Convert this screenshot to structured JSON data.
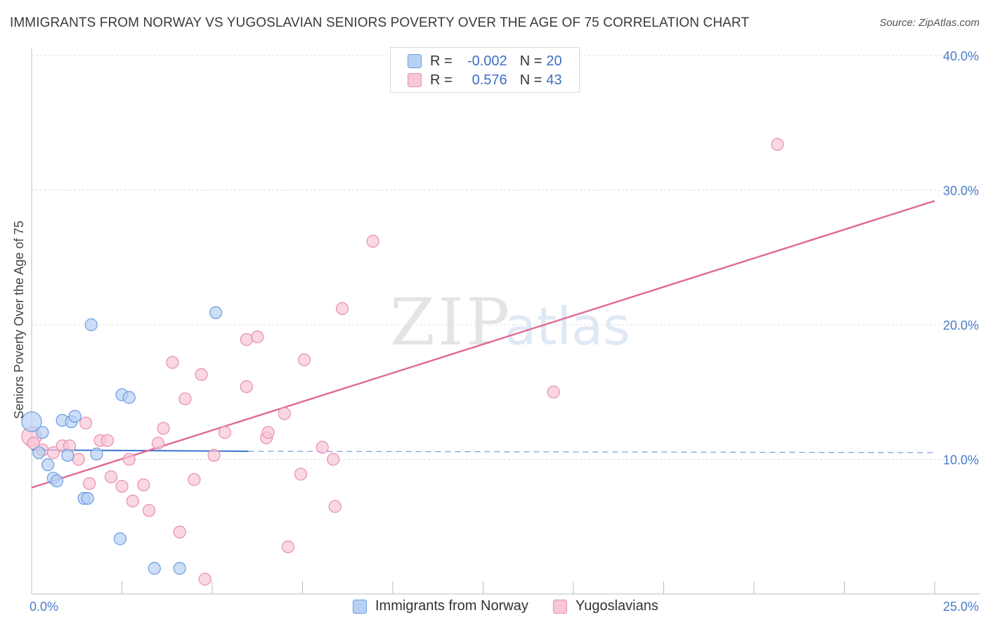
{
  "title": "IMMIGRANTS FROM NORWAY VS YUGOSLAVIAN SENIORS POVERTY OVER THE AGE OF 75 CORRELATION CHART",
  "source": "Source: ZipAtlas.com",
  "watermark": {
    "zip": "ZIP",
    "atlas": "atlas"
  },
  "colors": {
    "blue_fill": "#b8d0f3",
    "blue_stroke": "#6a9be0",
    "blue_line": "#3b73d1",
    "pink_fill": "#f8c6d4",
    "pink_stroke": "#e88fab",
    "pink_line": "#e06a94",
    "grid": "#dcdcdc",
    "tick_text": "#4a7cc9"
  },
  "legend": {
    "rows": [
      {
        "r_label": "R =",
        "r_value": "-0.002",
        "n_label": "N =",
        "n_value": "20"
      },
      {
        "r_label": "R =",
        "r_value": "0.576",
        "n_label": "N =",
        "n_value": "43"
      }
    ]
  },
  "chart_data": {
    "type": "scatter",
    "title": "IMMIGRANTS FROM NORWAY VS YUGOSLAVIAN SENIORS POVERTY OVER THE AGE OF 75 CORRELATION CHART",
    "xlabel": "",
    "ylabel": "Seniors Poverty Over the Age of 75",
    "xlim": [
      0,
      25
    ],
    "ylim": [
      0,
      40
    ],
    "x_tick_labels": [
      "0.0%",
      "25.0%"
    ],
    "y_ticks": [
      10,
      20,
      30,
      40
    ],
    "y_tick_labels": [
      "10.0%",
      "20.0%",
      "30.0%",
      "40.0%"
    ],
    "grid": true,
    "legend_position": "bottom",
    "series": [
      {
        "name": "Immigrants from Norway",
        "color": "blue",
        "trend": {
          "x0": 0,
          "y0": 10.7,
          "x1": 6.0,
          "y1": 10.6,
          "dashed_to": 25,
          "dashed_y": 10.5
        },
        "points": [
          [
            0.0,
            12.8
          ],
          [
            0.3,
            12.0
          ],
          [
            0.2,
            10.5
          ],
          [
            0.45,
            9.6
          ],
          [
            0.6,
            8.6
          ],
          [
            0.7,
            8.4
          ],
          [
            0.85,
            12.9
          ],
          [
            1.0,
            10.3
          ],
          [
            1.1,
            12.8
          ],
          [
            1.2,
            13.2
          ],
          [
            1.8,
            10.4
          ],
          [
            1.65,
            20.0
          ],
          [
            2.5,
            14.8
          ],
          [
            2.7,
            14.6
          ],
          [
            1.45,
            7.1
          ],
          [
            1.55,
            7.1
          ],
          [
            2.45,
            4.1
          ],
          [
            3.4,
            1.9
          ],
          [
            4.1,
            1.9
          ],
          [
            5.1,
            20.9
          ]
        ]
      },
      {
        "name": "Yugoslavians",
        "color": "pink",
        "trend": {
          "x0": 0,
          "y0": 7.9,
          "x1": 25,
          "y1": 29.2
        },
        "points": [
          [
            0.0,
            11.7
          ],
          [
            0.3,
            10.7
          ],
          [
            0.6,
            10.5
          ],
          [
            0.85,
            11.0
          ],
          [
            1.05,
            11.0
          ],
          [
            1.3,
            10.0
          ],
          [
            1.5,
            12.7
          ],
          [
            1.6,
            8.2
          ],
          [
            1.9,
            11.4
          ],
          [
            2.1,
            11.4
          ],
          [
            2.2,
            8.7
          ],
          [
            2.5,
            8.0
          ],
          [
            2.7,
            10.0
          ],
          [
            2.8,
            6.9
          ],
          [
            3.1,
            8.1
          ],
          [
            3.25,
            6.2
          ],
          [
            3.5,
            11.2
          ],
          [
            3.65,
            12.3
          ],
          [
            3.9,
            17.2
          ],
          [
            4.1,
            4.6
          ],
          [
            4.25,
            14.5
          ],
          [
            4.5,
            8.5
          ],
          [
            4.7,
            16.3
          ],
          [
            4.8,
            1.1
          ],
          [
            5.05,
            10.3
          ],
          [
            5.35,
            12.0
          ],
          [
            5.95,
            15.4
          ],
          [
            5.95,
            18.9
          ],
          [
            6.25,
            19.1
          ],
          [
            6.5,
            11.6
          ],
          [
            6.55,
            12.0
          ],
          [
            7.0,
            13.4
          ],
          [
            7.1,
            3.5
          ],
          [
            7.45,
            8.9
          ],
          [
            7.55,
            17.4
          ],
          [
            8.05,
            10.9
          ],
          [
            8.35,
            10.0
          ],
          [
            8.4,
            6.5
          ],
          [
            8.6,
            21.2
          ],
          [
            9.45,
            26.2
          ],
          [
            14.45,
            15.0
          ],
          [
            20.65,
            33.4
          ],
          [
            0.05,
            11.2
          ]
        ]
      }
    ]
  }
}
